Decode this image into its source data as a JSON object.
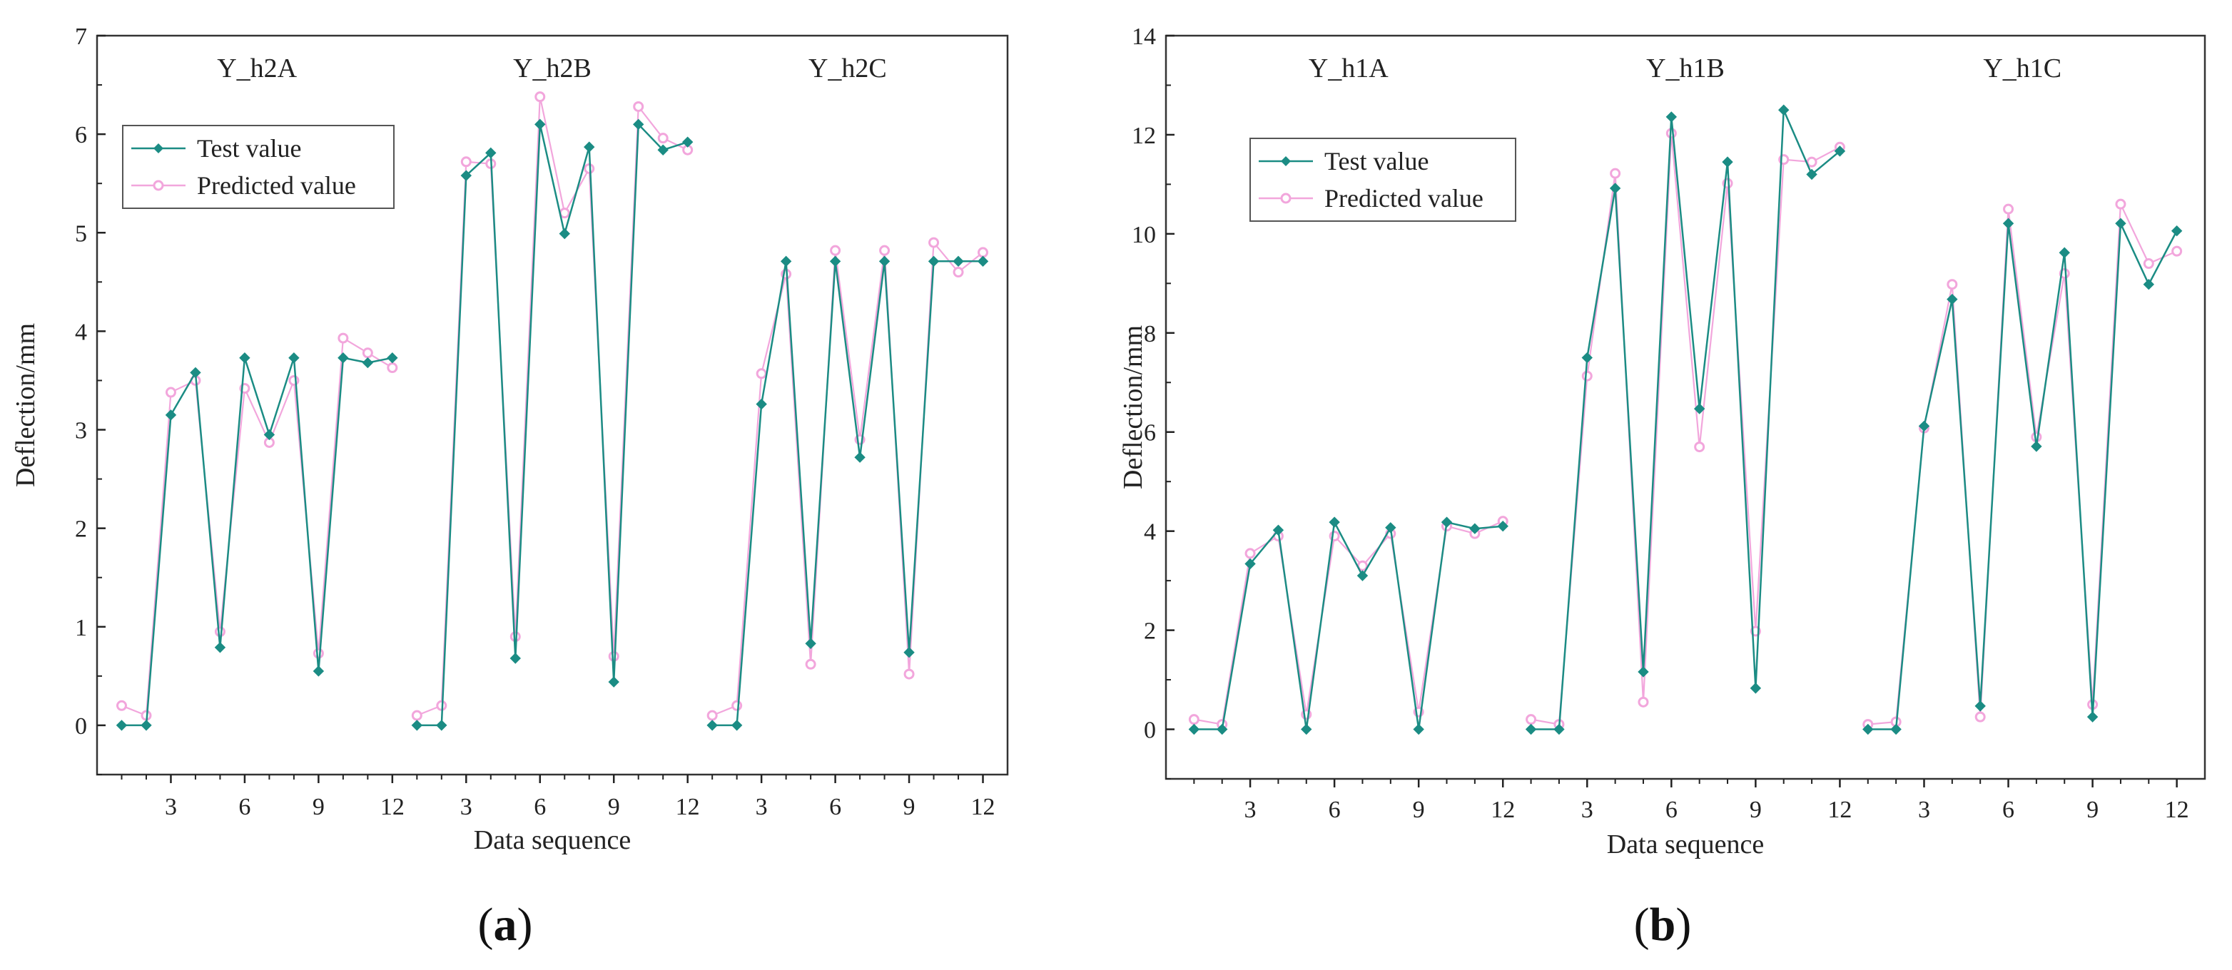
{
  "colors": {
    "test": "#1b8c84",
    "predicted": "#f2a6dc",
    "axis": "#222222",
    "frame": "#333333"
  },
  "chart_data": [
    {
      "type": "line",
      "panel_label": "(a)",
      "panel_letter": "a",
      "xlabel": "Data sequence",
      "ylabel": "Deflection/mm",
      "ylim": [
        -0.5,
        7
      ],
      "yticks": [
        0,
        1,
        2,
        3,
        4,
        5,
        6,
        7
      ],
      "x_tick_labels": [
        "3",
        "6",
        "9",
        "12"
      ],
      "legend": {
        "position": "upper-left",
        "entries": [
          "Test value",
          "Predicted value"
        ]
      },
      "groups": [
        {
          "name": "Y_h2A",
          "x": [
            1,
            2,
            3,
            4,
            5,
            6,
            7,
            8,
            9,
            10,
            11,
            12
          ],
          "series": [
            {
              "name": "Test value",
              "values": [
                0,
                0,
                3.15,
                3.58,
                0.79,
                3.73,
                2.95,
                3.73,
                0.55,
                3.73,
                3.68,
                3.73
              ]
            },
            {
              "name": "Predicted value",
              "values": [
                0.2,
                0.1,
                3.38,
                3.5,
                0.95,
                3.42,
                2.87,
                3.5,
                0.73,
                3.93,
                3.78,
                3.63
              ]
            }
          ]
        },
        {
          "name": "Y_h2B",
          "x": [
            1,
            2,
            3,
            4,
            5,
            6,
            7,
            8,
            9,
            10,
            11,
            12
          ],
          "series": [
            {
              "name": "Test value",
              "values": [
                0,
                0,
                5.58,
                5.81,
                0.68,
                6.1,
                4.99,
                5.87,
                0.44,
                6.1,
                5.84,
                5.92
              ]
            },
            {
              "name": "Predicted value",
              "values": [
                0.1,
                0.2,
                5.72,
                5.7,
                0.9,
                6.38,
                5.2,
                5.65,
                0.7,
                6.28,
                5.96,
                5.84
              ]
            }
          ]
        },
        {
          "name": "Y_h2C",
          "x": [
            1,
            2,
            3,
            4,
            5,
            6,
            7,
            8,
            9,
            10,
            11,
            12
          ],
          "series": [
            {
              "name": "Test value",
              "values": [
                0,
                0,
                3.26,
                4.71,
                0.83,
                4.71,
                2.72,
                4.71,
                0.74,
                4.71,
                4.71,
                4.71
              ]
            },
            {
              "name": "Predicted value",
              "values": [
                0.1,
                0.2,
                3.57,
                4.58,
                0.62,
                4.82,
                2.9,
                4.82,
                0.52,
                4.9,
                4.6,
                4.8
              ]
            }
          ]
        }
      ]
    },
    {
      "type": "line",
      "panel_label": "(b)",
      "panel_letter": "b",
      "xlabel": "Data sequence",
      "ylabel": "Deflection/mm",
      "ylim": [
        -1,
        14
      ],
      "yticks": [
        0,
        2,
        4,
        6,
        8,
        10,
        12,
        14
      ],
      "x_tick_labels": [
        "3",
        "6",
        "9",
        "12"
      ],
      "legend": {
        "position": "upper-left",
        "entries": [
          "Test value",
          "Predicted value"
        ]
      },
      "groups": [
        {
          "name": "Y_h1A",
          "x": [
            1,
            2,
            3,
            4,
            5,
            6,
            7,
            8,
            9,
            10,
            11,
            12
          ],
          "series": [
            {
              "name": "Test value",
              "values": [
                0,
                0,
                3.34,
                4.02,
                0,
                4.18,
                3.1,
                4.07,
                0,
                4.18,
                4.05,
                4.1
              ]
            },
            {
              "name": "Predicted value",
              "values": [
                0.2,
                0.1,
                3.55,
                3.9,
                0.3,
                3.9,
                3.3,
                3.95,
                0.35,
                4.1,
                3.95,
                4.2
              ]
            }
          ]
        },
        {
          "name": "Y_h1B",
          "x": [
            1,
            2,
            3,
            4,
            5,
            6,
            7,
            8,
            9,
            10,
            11,
            12
          ],
          "series": [
            {
              "name": "Test value",
              "values": [
                0,
                0,
                7.5,
                10.92,
                1.16,
                12.36,
                6.47,
                11.45,
                0.83,
                12.5,
                11.2,
                11.67
              ]
            },
            {
              "name": "Predicted value",
              "values": [
                0.2,
                0.1,
                7.13,
                11.22,
                0.55,
                12.03,
                5.7,
                11.02,
                1.98,
                11.5,
                11.45,
                11.75
              ]
            }
          ]
        },
        {
          "name": "Y_h1C",
          "x": [
            1,
            2,
            3,
            4,
            5,
            6,
            7,
            8,
            9,
            10,
            11,
            12
          ],
          "series": [
            {
              "name": "Test value",
              "values": [
                0,
                0,
                6.12,
                8.68,
                0.47,
                10.21,
                5.71,
                9.62,
                0.25,
                10.21,
                8.98,
                10.06
              ]
            },
            {
              "name": "Predicted value",
              "values": [
                0.1,
                0.15,
                6.08,
                8.98,
                0.25,
                10.5,
                5.9,
                9.2,
                0.5,
                10.6,
                9.4,
                9.65
              ]
            }
          ]
        }
      ]
    }
  ]
}
